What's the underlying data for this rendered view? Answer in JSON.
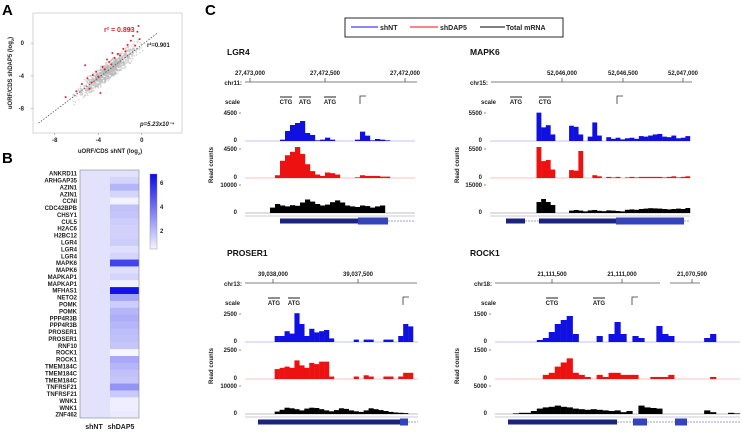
{
  "panel_labels": [
    "A",
    "B",
    "C"
  ],
  "chart_data": [
    {
      "type": "scatter",
      "panel": "A",
      "xlabel": "uORF/CDS shNT (log",
      "ylabel": "uORF/CDS shDAP5 (log",
      "log_base": "2",
      "xticks": [
        "-8",
        "-4",
        "0"
      ],
      "yticks": [
        "0",
        "-4",
        "-8"
      ],
      "xlim": [
        -10,
        3.7
      ],
      "ylim": [
        -11,
        3.7
      ],
      "r2_red": "r² = 0.893",
      "r2_gray": "r²=0.901",
      "pvalue": "p=5.23x10⁻⁴",
      "gray_point_count": 900,
      "red_points": [
        [
          -7,
          -6.6
        ],
        [
          -5.5,
          -5
        ],
        [
          -5,
          -4.3
        ],
        [
          -4.8,
          -5.6
        ],
        [
          -4.5,
          -3.9
        ],
        [
          -4.2,
          -3.5
        ],
        [
          -4,
          -4.1
        ],
        [
          -3.6,
          -2.9
        ],
        [
          -3.4,
          -3.2
        ],
        [
          -3,
          -2.3
        ],
        [
          -2.8,
          -2.6
        ],
        [
          -2.5,
          -1.8
        ],
        [
          -2.2,
          -1.3
        ],
        [
          -2,
          -1.5
        ],
        [
          -1.7,
          -0.7
        ],
        [
          -1.5,
          -1
        ],
        [
          -1.3,
          -0.2
        ],
        [
          -1,
          0.3
        ],
        [
          -0.8,
          0.9
        ],
        [
          -0.6,
          -0.3
        ],
        [
          -0.4,
          1.4
        ],
        [
          -0.3,
          2.1
        ],
        [
          -5.2,
          -2.7
        ],
        [
          -3.8,
          -6.1
        ],
        [
          -1.1,
          1.7
        ],
        [
          -2.7,
          -1.2
        ],
        [
          -0.2,
          0.5
        ],
        [
          -4.6,
          -4.8
        ],
        [
          -6,
          -5.9
        ],
        [
          -3.2,
          -2
        ]
      ],
      "colors": {
        "red": "#e8202a",
        "gray": "#b8b8b8"
      }
    },
    {
      "type": "heatmap",
      "panel": "B",
      "columns": [
        "shNT",
        "shDAP5"
      ],
      "rows": [
        "ANKRD11",
        "ARHGAP35",
        "AZIN1",
        "AZIN1",
        "CCNI",
        "CDC42BPB",
        "CHSY1",
        "CUL5",
        "H2AC6",
        "H2BC12",
        "LGR4",
        "LGR4",
        "LGR4",
        "MAPK6",
        "MAPK6",
        "MAPKAP1",
        "MAPKAP1",
        "MFHAS1",
        "NETO2",
        "POMK",
        "POMK",
        "PPP4R3B",
        "PPP4R3B",
        "PROSER1",
        "PROSER1",
        "RNF10",
        "ROCK1",
        "ROCK1",
        "TMEM184C",
        "TMEM184C",
        "TMEM184C",
        "TNFRSF21",
        "TNFRSF21",
        "WNK1",
        "WNK1",
        "ZNF462"
      ],
      "shNT": 1.5,
      "shDAP5": [
        1.5,
        1.8,
        2.6,
        1.8,
        1.1,
        2.3,
        2.2,
        2.0,
        1.9,
        1.9,
        2.0,
        1.6,
        1.8,
        5.4,
        1.6,
        1.8,
        1.1,
        6.6,
        3.0,
        2.0,
        2.6,
        2.8,
        2.6,
        2.4,
        2.3,
        2.2,
        0.8,
        2.9,
        2.6,
        2.3,
        2.2,
        3.4,
        2.1,
        1.2,
        1.2,
        1.3
      ],
      "colorbar_ticks": [
        "6",
        "4",
        "2"
      ],
      "range": [
        1,
        6.8
      ]
    },
    {
      "type": "area",
      "panel": "C",
      "legend": [
        {
          "label": "shNT",
          "color": "#1010e0"
        },
        {
          "label": "shDAP5",
          "color": "#ee1111"
        },
        {
          "label": "Total mRNA",
          "color": "#000000"
        }
      ],
      "ylabel": "Read counts",
      "scale_label": "scale",
      "genes": [
        {
          "name": "LGR4",
          "chrom": "chr11:",
          "ticks": [
            "27,473,000",
            "27,472,500",
            "27,472,000"
          ],
          "marks": [
            "CTG",
            "ATG",
            "ATG"
          ],
          "scales": [
            "4500",
            "4500",
            "10000"
          ],
          "shNT": [
            0,
            0,
            0,
            0,
            0,
            0,
            0,
            200,
            1500,
            2400,
            2700,
            3000,
            1200,
            900,
            100,
            200,
            500,
            200,
            0,
            0,
            0,
            0,
            200,
            1400,
            800,
            100,
            300,
            200,
            100,
            0,
            0,
            0,
            0,
            0
          ],
          "shDAP5": [
            0,
            0,
            0,
            0,
            0,
            0,
            400,
            2500,
            3300,
            3800,
            4500,
            3500,
            2000,
            1000,
            500,
            300,
            800,
            700,
            500,
            0,
            0,
            0,
            100,
            400,
            300,
            300,
            300,
            200,
            200,
            0,
            0,
            0,
            0,
            0
          ],
          "total": [
            0,
            0,
            0,
            0,
            0,
            1800,
            3000,
            2500,
            2200,
            2600,
            2400,
            3500,
            4500,
            3800,
            3000,
            2500,
            2800,
            3600,
            4200,
            3500,
            2500,
            2200,
            2000,
            2500,
            2300,
            1800,
            2200,
            2500,
            0,
            0,
            0,
            0,
            0,
            0
          ]
        },
        {
          "name": "MAPK6",
          "chrom": "chr15:",
          "ticks": [
            "52,046,000",
            "52,046,500",
            "52,047,000"
          ],
          "marks": [
            "ATG",
            "CTG"
          ],
          "scales": [
            "5500",
            "5500",
            "15000"
          ],
          "shNT": [
            0,
            0,
            0,
            0,
            0,
            0,
            0,
            0,
            0,
            0,
            5200,
            2500,
            2900,
            1200,
            0,
            0,
            0,
            2800,
            2600,
            1200,
            0,
            800,
            3400,
            1000,
            0,
            700,
            400,
            600,
            300,
            500,
            600,
            400,
            900,
            800,
            1000,
            1200,
            1300,
            800,
            700,
            1000,
            500,
            600,
            900
          ],
          "shDAP5": [
            0,
            0,
            0,
            0,
            0,
            0,
            0,
            0,
            0,
            0,
            5500,
            3000,
            3200,
            1500,
            0,
            0,
            0,
            1400,
            1300,
            4800,
            0,
            0,
            500,
            300,
            0,
            200,
            100,
            200,
            0,
            100,
            200,
            100,
            200,
            200,
            200,
            200,
            200,
            100,
            200,
            300,
            100,
            200,
            300
          ],
          "total": [
            0,
            0,
            0,
            0,
            0,
            0,
            0,
            0,
            0,
            0,
            5500,
            7000,
            5500,
            4000,
            0,
            0,
            0,
            1200,
            1500,
            1200,
            800,
            1300,
            1500,
            1100,
            900,
            1300,
            1200,
            1000,
            800,
            1600,
            1800,
            1600,
            2000,
            2200,
            2400,
            2300,
            2200,
            2000,
            1800,
            2000,
            2200,
            2000,
            2500
          ]
        },
        {
          "name": "PROSER1",
          "chrom": "chr13:",
          "ticks": [
            "39,038,000",
            "39,037,500"
          ],
          "marks": [
            "ATG",
            "ATG"
          ],
          "scales": [
            "2500",
            "2500",
            "10000"
          ],
          "shNT": [
            0,
            0,
            0,
            0,
            0,
            0,
            500,
            500,
            900,
            700,
            2400,
            1500,
            500,
            1100,
            800,
            900,
            1000,
            300,
            0,
            0,
            0,
            0,
            200,
            0,
            200,
            200,
            0,
            0,
            200,
            200,
            0,
            500,
            1500,
            1300,
            0
          ],
          "shDAP5": [
            0,
            0,
            0,
            0,
            0,
            0,
            800,
            900,
            1000,
            900,
            1500,
            1100,
            900,
            1300,
            1200,
            1400,
            1400,
            200,
            0,
            0,
            0,
            0,
            200,
            0,
            300,
            200,
            0,
            0,
            200,
            200,
            0,
            200,
            500,
            500,
            0
          ],
          "total": [
            0,
            0,
            0,
            0,
            0,
            0,
            800,
            1400,
            2100,
            1900,
            1600,
            1200,
            1800,
            2100,
            2000,
            1600,
            1200,
            900,
            1300,
            1900,
            1700,
            1200,
            900,
            700,
            1200,
            1900,
            1600,
            1300,
            1000,
            700,
            500,
            400,
            300,
            0,
            0
          ]
        },
        {
          "name": "ROCK1",
          "chrom": "chr18:",
          "ticks": [
            "21,111,500",
            "21,111,000",
            "21,070,500"
          ],
          "marks": [
            "CTG",
            "ATG"
          ],
          "scales": [
            "1500",
            "1500",
            "5000"
          ],
          "shNT": [
            0,
            0,
            0,
            0,
            0,
            0,
            0,
            100,
            200,
            500,
            900,
            1100,
            1300,
            400,
            0,
            0,
            0,
            300,
            0,
            400,
            1000,
            400,
            0,
            300,
            200,
            0,
            0,
            800,
            400,
            300,
            0,
            0,
            0,
            0,
            0,
            200,
            400,
            0,
            0,
            0,
            0
          ],
          "shDAP5": [
            0,
            0,
            0,
            0,
            0,
            0,
            0,
            0,
            200,
            300,
            600,
            800,
            1000,
            300,
            200,
            100,
            0,
            200,
            100,
            300,
            300,
            200,
            200,
            200,
            0,
            0,
            100,
            100,
            100,
            200,
            0,
            0,
            0,
            0,
            0,
            0,
            100,
            0,
            0,
            0,
            0
          ],
          "total": [
            0,
            0,
            0,
            100,
            200,
            200,
            500,
            900,
            1100,
            1200,
            1400,
            1200,
            1100,
            900,
            800,
            700,
            800,
            700,
            600,
            500,
            600,
            300,
            500,
            0,
            1400,
            1100,
            1000,
            900,
            0,
            0,
            0,
            0,
            0,
            0,
            0,
            600,
            300,
            0,
            0,
            200,
            100
          ]
        }
      ]
    }
  ]
}
